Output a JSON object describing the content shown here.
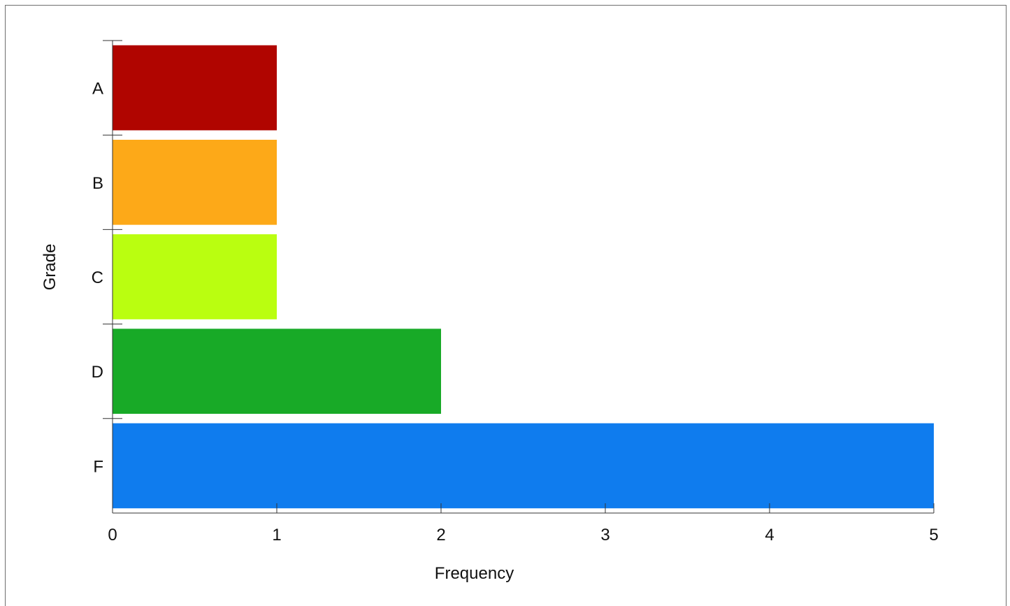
{
  "chart_data": {
    "type": "bar",
    "orientation": "horizontal",
    "categories": [
      "A",
      "B",
      "C",
      "D",
      "F"
    ],
    "values": [
      1,
      1,
      1,
      2,
      5
    ],
    "colors": [
      "#b00500",
      "#fda918",
      "#bafe10",
      "#18aa27",
      "#0f7cee"
    ],
    "title": "",
    "xlabel": "Frequency",
    "ylabel": "Grade",
    "xlim": [
      0,
      5
    ],
    "xticks": [
      0,
      1,
      2,
      3,
      4,
      5
    ],
    "grid": false,
    "legend": "none"
  }
}
